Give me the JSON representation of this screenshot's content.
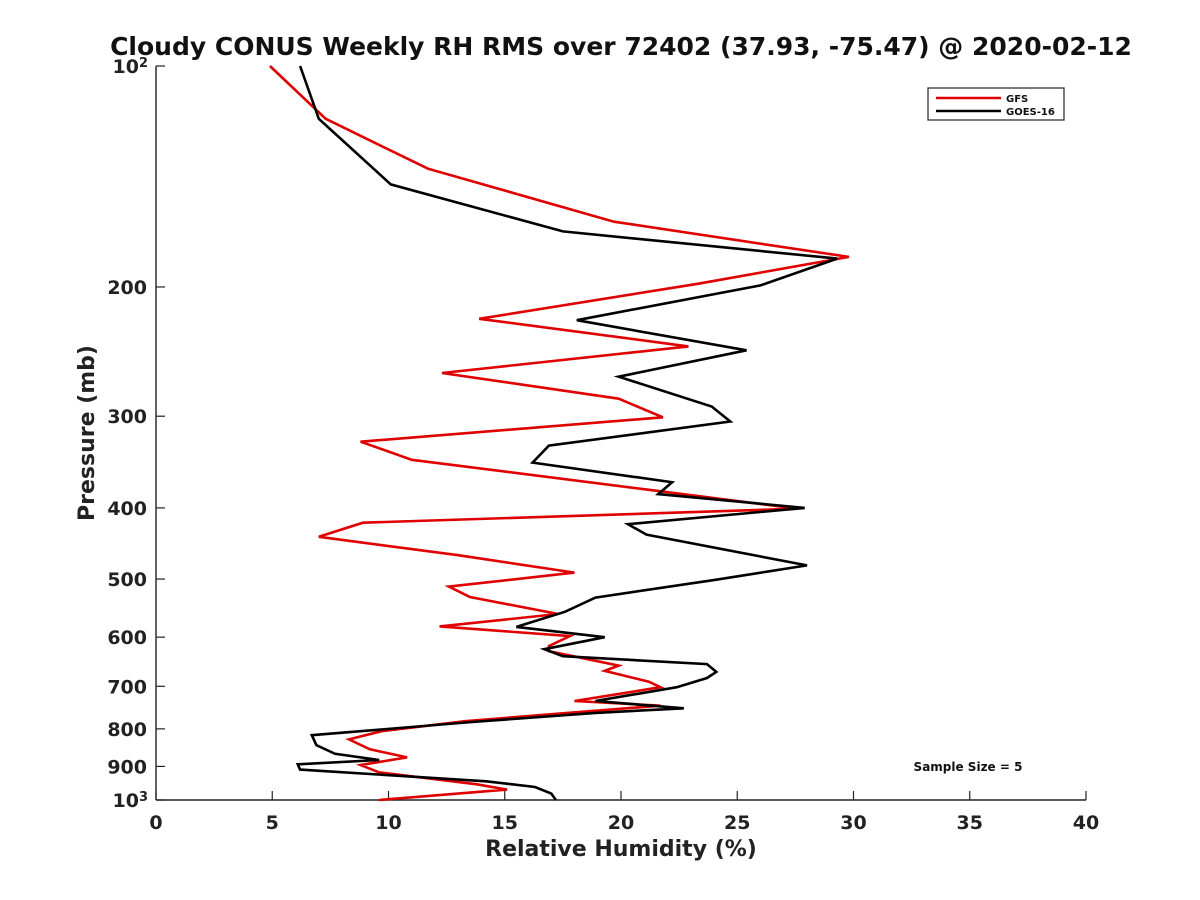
{
  "chart_data": {
    "type": "line",
    "title": "Cloudy CONUS Weekly RH RMS over 72402 (37.93, -75.47) @ 2020-02-12",
    "xlabel": "Relative Humidity (%)",
    "ylabel": "Pressure (mb)",
    "xlim": [
      0,
      40
    ],
    "ylim": [
      100,
      1000
    ],
    "y_scale": "log",
    "y_reversed": true,
    "x_ticks": [
      0,
      5,
      10,
      15,
      20,
      25,
      30,
      35,
      40
    ],
    "y_ticks": [
      {
        "value": 100,
        "label": "10",
        "sup": "2"
      },
      {
        "value": 200,
        "label": "200"
      },
      {
        "value": 300,
        "label": "300"
      },
      {
        "value": 400,
        "label": "400"
      },
      {
        "value": 500,
        "label": "500"
      },
      {
        "value": 600,
        "label": "600"
      },
      {
        "value": 700,
        "label": "700"
      },
      {
        "value": 800,
        "label": "800"
      },
      {
        "value": 900,
        "label": "900"
      },
      {
        "value": 1000,
        "label": "10",
        "sup": "3"
      }
    ],
    "grid": false,
    "legend_position": "top-right",
    "annotation": "Sample Size = 5",
    "series": [
      {
        "name": "GFS",
        "color": "#e00000",
        "points": [
          [
            4.9,
            100
          ],
          [
            7.3,
            118
          ],
          [
            11.7,
            138
          ],
          [
            19.7,
            163
          ],
          [
            29.8,
            182
          ],
          [
            23.3,
            198
          ],
          [
            13.9,
            221
          ],
          [
            22.9,
            241
          ],
          [
            12.3,
            262
          ],
          [
            19.9,
            284
          ],
          [
            21.8,
            301
          ],
          [
            8.8,
            325
          ],
          [
            11.0,
            344
          ],
          [
            21.5,
            379
          ],
          [
            27.6,
            401
          ],
          [
            8.9,
            419
          ],
          [
            7.0,
            438
          ],
          [
            13.0,
            464
          ],
          [
            18.0,
            490
          ],
          [
            12.6,
            512
          ],
          [
            13.5,
            529
          ],
          [
            17.3,
            558
          ],
          [
            12.2,
            580
          ],
          [
            17.8,
            598
          ],
          [
            16.9,
            617
          ],
          [
            16.9,
            627
          ],
          [
            19.9,
            656
          ],
          [
            19.3,
            667
          ],
          [
            21.2,
            690
          ],
          [
            21.7,
            702
          ],
          [
            18.0,
            733
          ],
          [
            21.7,
            744
          ],
          [
            17.9,
            760
          ],
          [
            13.3,
            781
          ],
          [
            9.7,
            806
          ],
          [
            8.3,
            827
          ],
          [
            9.2,
            853
          ],
          [
            10.8,
            875
          ],
          [
            8.8,
            896
          ],
          [
            9.6,
            917
          ],
          [
            13.8,
            952
          ],
          [
            15.1,
            968
          ],
          [
            9.6,
            1000
          ]
        ]
      },
      {
        "name": "GOES-16",
        "color": "#000000",
        "points": [
          [
            6.2,
            100
          ],
          [
            7.0,
            118
          ],
          [
            10.1,
            145
          ],
          [
            17.5,
            168
          ],
          [
            29.3,
            183
          ],
          [
            26.0,
            199
          ],
          [
            18.1,
            222
          ],
          [
            25.4,
            244
          ],
          [
            19.9,
            265
          ],
          [
            23.9,
            291
          ],
          [
            24.7,
            305
          ],
          [
            16.9,
            329
          ],
          [
            16.2,
            347
          ],
          [
            22.2,
            369
          ],
          [
            21.6,
            383
          ],
          [
            27.9,
            400
          ],
          [
            20.3,
            421
          ],
          [
            21.1,
            435
          ],
          [
            28.0,
            479
          ],
          [
            24.1,
            501
          ],
          [
            18.9,
            530
          ],
          [
            17.6,
            554
          ],
          [
            15.5,
            581
          ],
          [
            19.3,
            600
          ],
          [
            16.7,
            623
          ],
          [
            17.5,
            637
          ],
          [
            23.7,
            653
          ],
          [
            24.1,
            669
          ],
          [
            23.7,
            682
          ],
          [
            22.4,
            702
          ],
          [
            18.9,
            733
          ],
          [
            22.7,
            750
          ],
          [
            18.9,
            761
          ],
          [
            13.6,
            783
          ],
          [
            6.7,
            816
          ],
          [
            6.9,
            842
          ],
          [
            7.7,
            865
          ],
          [
            9.6,
            882
          ],
          [
            6.1,
            894
          ],
          [
            6.2,
            909
          ],
          [
            14.2,
            943
          ],
          [
            16.3,
            960
          ],
          [
            17.0,
            980
          ],
          [
            17.2,
            1000
          ]
        ]
      }
    ]
  }
}
